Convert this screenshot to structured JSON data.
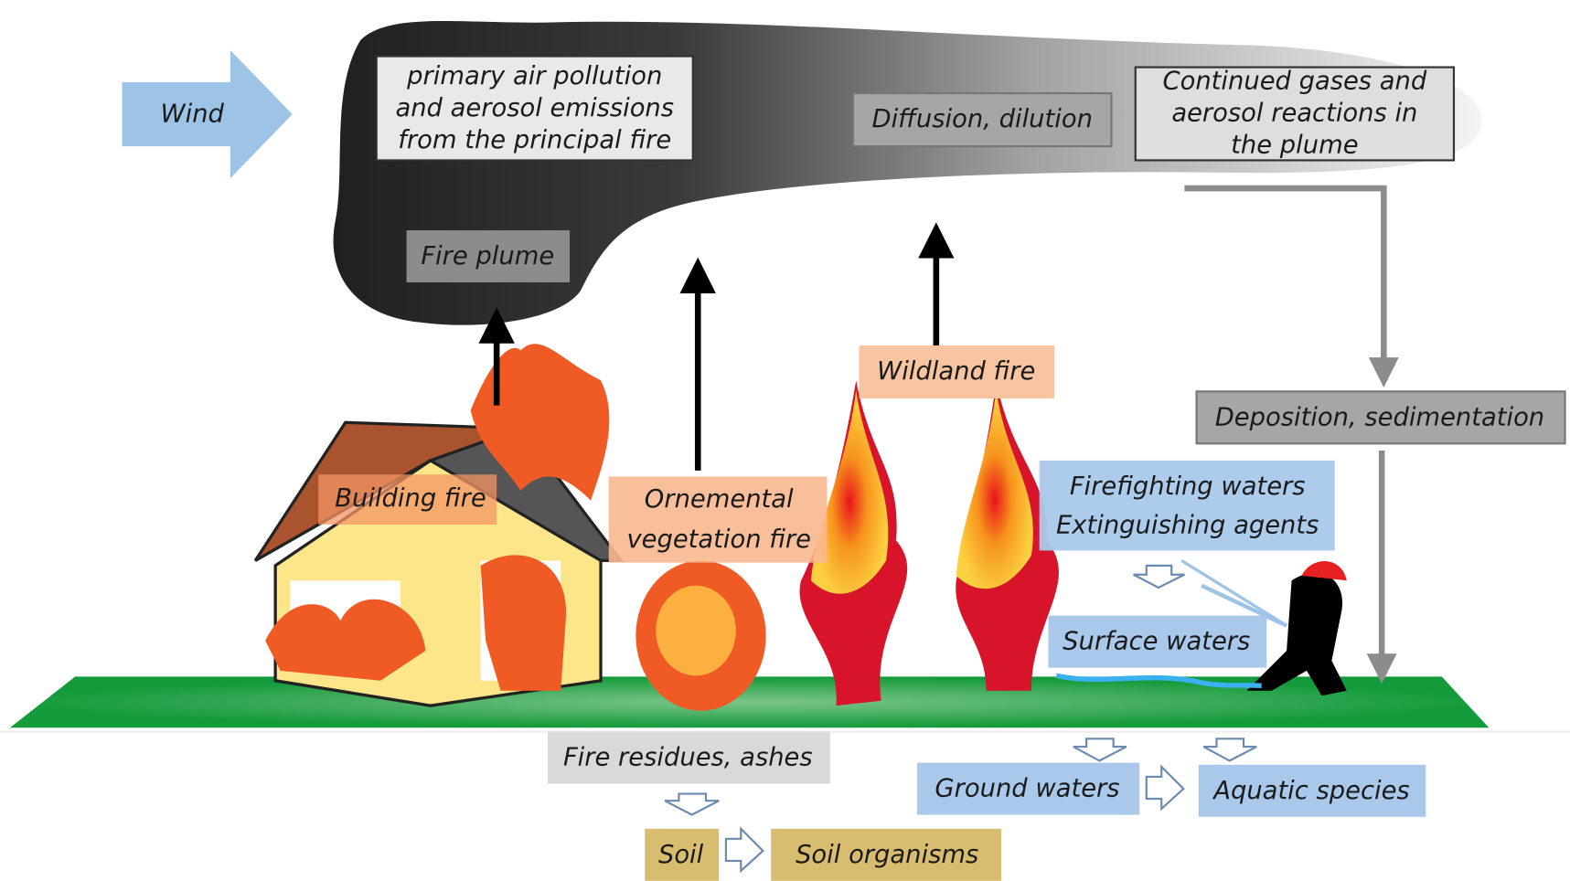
{
  "nodes": [
    {
      "lines": [
        "Wind"
      ]
    },
    {
      "lines": [
        "primary air pollution",
        "and aerosol emissions",
        "from the principal fire"
      ]
    },
    {
      "lines": [
        "Diffusion, dilution"
      ]
    },
    {
      "lines": [
        "Continued gases and",
        "aerosol reactions in",
        "the plume"
      ]
    },
    {
      "lines": [
        "Fire plume"
      ]
    },
    {
      "lines": [
        "Wildland fire"
      ]
    },
    {
      "lines": [
        "Deposition, sedimentation"
      ]
    },
    {
      "lines": [
        "Building fire"
      ]
    },
    {
      "lines": [
        "Ornemental",
        "vegetation fire"
      ]
    },
    {
      "lines": [
        "Firefighting waters",
        "Extinguishing agents"
      ]
    },
    {
      "lines": [
        "Surface waters"
      ]
    },
    {
      "lines": [
        "Fire residues, ashes"
      ]
    },
    {
      "lines": [
        "Ground waters"
      ]
    },
    {
      "lines": [
        "Aquatic species"
      ]
    },
    {
      "lines": [
        "Soil"
      ]
    },
    {
      "lines": [
        "Soil organisms"
      ]
    }
  ]
}
